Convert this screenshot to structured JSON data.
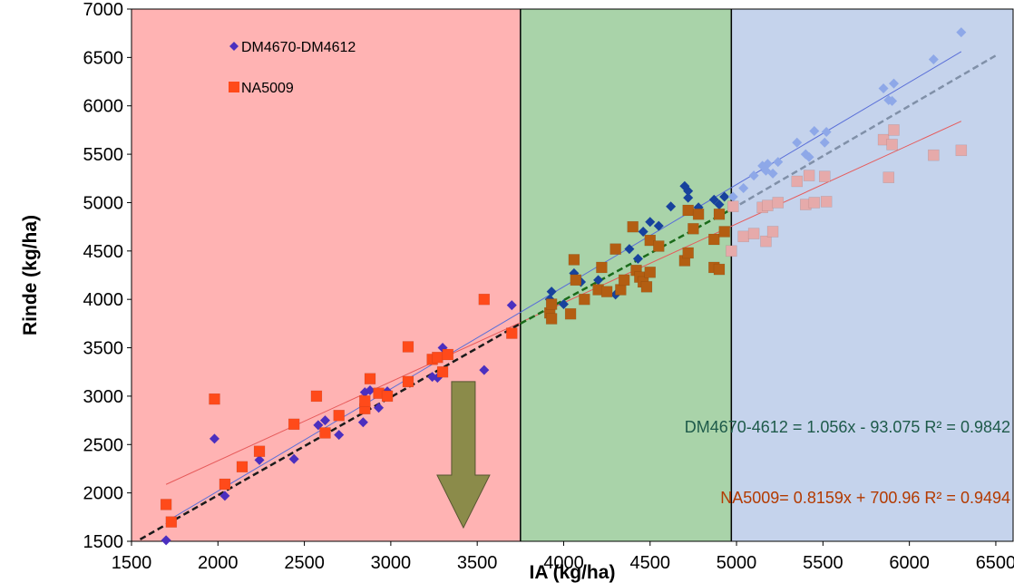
{
  "chart_data": {
    "type": "scatter",
    "xlabel": "IA (kg/ha)",
    "ylabel": "Rinde (kg/ha)",
    "xlim": [
      1500,
      6600
    ],
    "ylim": [
      1500,
      7000
    ],
    "x_ticks": [
      "1500",
      "2000",
      "2500",
      "3000",
      "3500",
      "4000",
      "4500",
      "5000",
      "5500",
      "6000",
      "6500"
    ],
    "y_ticks": [
      "1500",
      "2000",
      "2500",
      "3000",
      "3500",
      "4000",
      "4500",
      "5000",
      "5500",
      "6000",
      "6500",
      "7000"
    ],
    "grid": false,
    "legend_position": "top-left",
    "zones": [
      {
        "from": 1500,
        "to": 3750,
        "color": "#ffb3b3"
      },
      {
        "from": 3750,
        "to": 4970,
        "color": "#a9d3a9"
      },
      {
        "from": 4970,
        "to": 6600,
        "color": "#c5d3ec"
      }
    ],
    "series": [
      {
        "name": "DM4670-DM4612",
        "marker": "diamond",
        "colors": {
          "red_zone": "#4b2fbf",
          "green_zone": "#17429c",
          "blue_zone": "#8ea8e8"
        },
        "points": [
          [
            1700,
            1510
          ],
          [
            1730,
            1700
          ],
          [
            1980,
            2560
          ],
          [
            2040,
            1970
          ],
          [
            2240,
            2340
          ],
          [
            2440,
            2350
          ],
          [
            2580,
            2700
          ],
          [
            2620,
            2750
          ],
          [
            2700,
            2600
          ],
          [
            2840,
            2730
          ],
          [
            2850,
            3040
          ],
          [
            2880,
            3060
          ],
          [
            2930,
            2880
          ],
          [
            2980,
            3050
          ],
          [
            3100,
            3150
          ],
          [
            3240,
            3200
          ],
          [
            3270,
            3190
          ],
          [
            3300,
            3500
          ],
          [
            3540,
            3270
          ],
          [
            3700,
            3940
          ],
          [
            3920,
            4000
          ],
          [
            3930,
            4080
          ],
          [
            4000,
            3950
          ],
          [
            4060,
            4270
          ],
          [
            4100,
            4180
          ],
          [
            4200,
            4200
          ],
          [
            4300,
            4050
          ],
          [
            4380,
            4520
          ],
          [
            4430,
            4420
          ],
          [
            4460,
            4700
          ],
          [
            4500,
            4800
          ],
          [
            4550,
            4760
          ],
          [
            4620,
            4960
          ],
          [
            4700,
            5170
          ],
          [
            4720,
            5050
          ],
          [
            4720,
            5120
          ],
          [
            4780,
            4950
          ],
          [
            4870,
            5030
          ],
          [
            4900,
            4980
          ],
          [
            4930,
            5060
          ],
          [
            4980,
            5060
          ],
          [
            5040,
            5150
          ],
          [
            5100,
            5280
          ],
          [
            5150,
            5380
          ],
          [
            5170,
            5330
          ],
          [
            5180,
            5400
          ],
          [
            5210,
            5300
          ],
          [
            5240,
            5420
          ],
          [
            5350,
            5620
          ],
          [
            5400,
            5500
          ],
          [
            5420,
            5470
          ],
          [
            5450,
            5740
          ],
          [
            5510,
            5620
          ],
          [
            5520,
            5730
          ],
          [
            5850,
            6180
          ],
          [
            5880,
            6060
          ],
          [
            5900,
            6050
          ],
          [
            5910,
            6230
          ],
          [
            6140,
            6480
          ],
          [
            6300,
            6760
          ]
        ],
        "trendline": {
          "slope": 1.056,
          "intercept": -93.075,
          "color": "#5a6fd8"
        },
        "equation": "DM4670-4612 = 1.056x - 93.075 R² = 0.9842",
        "equation_color": "#1e5a4a"
      },
      {
        "name": "NA5009",
        "marker": "square",
        "colors": {
          "red_zone": "#ff4a1a",
          "green_zone": "#b35e12",
          "blue_zone": "#e6aaaa"
        },
        "points": [
          [
            1700,
            1880
          ],
          [
            1730,
            1700
          ],
          [
            1980,
            2970
          ],
          [
            2040,
            2090
          ],
          [
            2140,
            2270
          ],
          [
            2240,
            2430
          ],
          [
            2440,
            2710
          ],
          [
            2570,
            3000
          ],
          [
            2620,
            2620
          ],
          [
            2700,
            2800
          ],
          [
            2850,
            2870
          ],
          [
            2850,
            2950
          ],
          [
            2880,
            3180
          ],
          [
            2930,
            3030
          ],
          [
            2980,
            3000
          ],
          [
            3100,
            3510
          ],
          [
            3100,
            3150
          ],
          [
            3240,
            3380
          ],
          [
            3270,
            3400
          ],
          [
            3300,
            3250
          ],
          [
            3330,
            3430
          ],
          [
            3540,
            4000
          ],
          [
            3700,
            3650
          ],
          [
            3920,
            3860
          ],
          [
            3930,
            3800
          ],
          [
            3930,
            3950
          ],
          [
            4040,
            3850
          ],
          [
            4060,
            4410
          ],
          [
            4070,
            4200
          ],
          [
            4120,
            4000
          ],
          [
            4200,
            4100
          ],
          [
            4220,
            4330
          ],
          [
            4250,
            4080
          ],
          [
            4300,
            4520
          ],
          [
            4330,
            4100
          ],
          [
            4350,
            4200
          ],
          [
            4400,
            4750
          ],
          [
            4420,
            4300
          ],
          [
            4440,
            4230
          ],
          [
            4460,
            4180
          ],
          [
            4480,
            4130
          ],
          [
            4500,
            4610
          ],
          [
            4500,
            4280
          ],
          [
            4550,
            4550
          ],
          [
            4700,
            4400
          ],
          [
            4720,
            4920
          ],
          [
            4720,
            4480
          ],
          [
            4750,
            4730
          ],
          [
            4780,
            4880
          ],
          [
            4870,
            4620
          ],
          [
            4870,
            4330
          ],
          [
            4900,
            4310
          ],
          [
            4900,
            4880
          ],
          [
            4930,
            4700
          ],
          [
            4980,
            4960
          ],
          [
            4970,
            4500
          ],
          [
            5040,
            4650
          ],
          [
            5100,
            4680
          ],
          [
            5150,
            4950
          ],
          [
            5170,
            4600
          ],
          [
            5180,
            4970
          ],
          [
            5210,
            4700
          ],
          [
            5240,
            5000
          ],
          [
            5350,
            5220
          ],
          [
            5400,
            4980
          ],
          [
            5420,
            5280
          ],
          [
            5450,
            5000
          ],
          [
            5510,
            5270
          ],
          [
            5520,
            5010
          ],
          [
            5850,
            5650
          ],
          [
            5880,
            5260
          ],
          [
            5900,
            5600
          ],
          [
            5910,
            5750
          ],
          [
            6140,
            5490
          ],
          [
            6300,
            5540
          ]
        ],
        "trendline": {
          "slope": 0.8159,
          "intercept": 700.96,
          "color": "#e65a5a"
        },
        "equation": "NA5009= 0.8159x + 700.96 R² = 0.9494",
        "equation_color": "#b33a00"
      }
    ],
    "dashed_trend_lines": [
      {
        "from": [
          1550,
          1520
        ],
        "to": [
          3750,
          3750
        ],
        "color": "#1a1a1a"
      },
      {
        "from": [
          3750,
          3750
        ],
        "to": [
          4970,
          4930
        ],
        "color": "#1a6b1a"
      },
      {
        "from": [
          4970,
          4930
        ],
        "to": [
          6500,
          6520
        ],
        "color": "#8090a8"
      }
    ],
    "arrow": {
      "x": 3420,
      "y_top": 3150,
      "y_bottom": 1640,
      "color": "#8b8b4a"
    }
  }
}
